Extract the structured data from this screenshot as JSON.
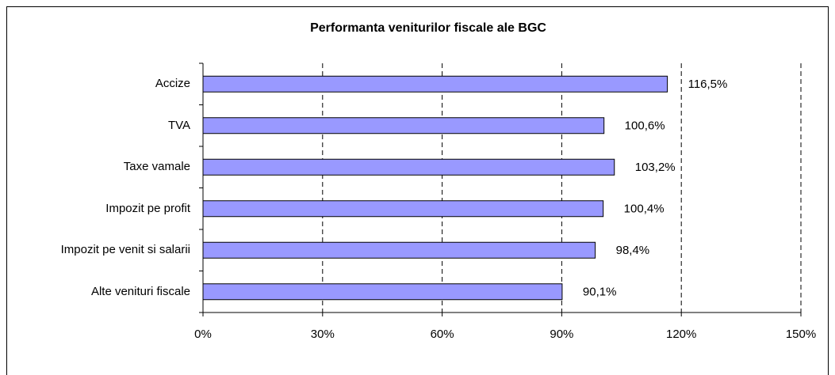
{
  "chart_data": {
    "type": "bar",
    "orientation": "horizontal",
    "title": "Performanta veniturilor fiscale ale BGC",
    "categories": [
      "Accize",
      "TVA",
      "Taxe vamale",
      "Impozit pe profit",
      "Impozit pe venit si salarii",
      "Alte venituri fiscale"
    ],
    "values": [
      116.5,
      100.6,
      103.2,
      100.4,
      98.4,
      90.1
    ],
    "value_labels": [
      "116,5%",
      "100,6%",
      "103,2%",
      "100,4%",
      "98,4%",
      "90,1%"
    ],
    "color": "#9999ff",
    "xlim": [
      0,
      150
    ],
    "xticks": [
      {
        "value": 0,
        "label": "0%"
      },
      {
        "value": 30,
        "label": "30%"
      },
      {
        "value": 60,
        "label": "60%"
      },
      {
        "value": 90,
        "label": "90%"
      },
      {
        "value": 120,
        "label": "120%"
      },
      {
        "value": 150,
        "label": "150%"
      }
    ],
    "grid": true
  }
}
